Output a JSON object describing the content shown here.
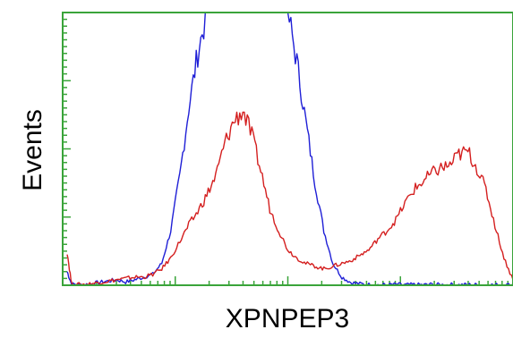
{
  "chart_data": {
    "type": "line",
    "title": "",
    "xlabel": "XPNPEP3",
    "ylabel": "Events",
    "x_scale": "log",
    "grid": false,
    "legend": "none",
    "frame_color": "#3aa43a",
    "series": [
      {
        "color": "#1f1fd6",
        "x": [
          1,
          2,
          4,
          6,
          8,
          10,
          12,
          14,
          16,
          18,
          20,
          22,
          24,
          26,
          28,
          30,
          32,
          34,
          36,
          38,
          40,
          42,
          44,
          46,
          48,
          50,
          52,
          54,
          56,
          58,
          60,
          62,
          64,
          66,
          68,
          70,
          72,
          74,
          76,
          78,
          80,
          82,
          84,
          86,
          88,
          90,
          92,
          94,
          96,
          98,
          100
        ],
        "y": [
          5,
          0.3,
          0.2,
          0.4,
          1,
          1.5,
          2,
          1.2,
          2,
          3,
          4,
          8,
          20,
          40,
          65,
          85,
          100,
          100,
          100,
          100,
          100,
          100,
          100,
          100,
          100,
          100,
          82,
          60,
          38,
          20,
          8,
          3,
          1,
          0.5,
          0.2,
          0.1,
          0.1,
          0.3,
          0.1,
          0.2,
          0.1,
          0.3,
          0.1,
          0.2,
          0.1,
          0.2,
          0.1,
          0.1,
          0.1,
          0.1,
          0.1
        ]
      },
      {
        "color": "#d41f1f",
        "x": [
          1,
          2,
          4,
          6,
          8,
          10,
          12,
          14,
          16,
          18,
          20,
          22,
          24,
          26,
          28,
          30,
          32,
          34,
          36,
          38,
          40,
          42,
          44,
          46,
          48,
          50,
          52,
          54,
          56,
          58,
          60,
          62,
          64,
          66,
          68,
          70,
          72,
          74,
          76,
          78,
          80,
          82,
          84,
          86,
          88,
          90,
          92,
          94,
          96,
          98,
          100
        ],
        "y": [
          12,
          0.3,
          0.2,
          0.5,
          1,
          1.5,
          2,
          2.5,
          3,
          3,
          4,
          6,
          10,
          16,
          22,
          27,
          33,
          40,
          52,
          60,
          64,
          55,
          42,
          28,
          20,
          13,
          10,
          8,
          7,
          6,
          7,
          8,
          9,
          11,
          13,
          17,
          20,
          24,
          30,
          35,
          38,
          41,
          43,
          44,
          48,
          49,
          43,
          35,
          22,
          10,
          2
        ]
      }
    ]
  }
}
